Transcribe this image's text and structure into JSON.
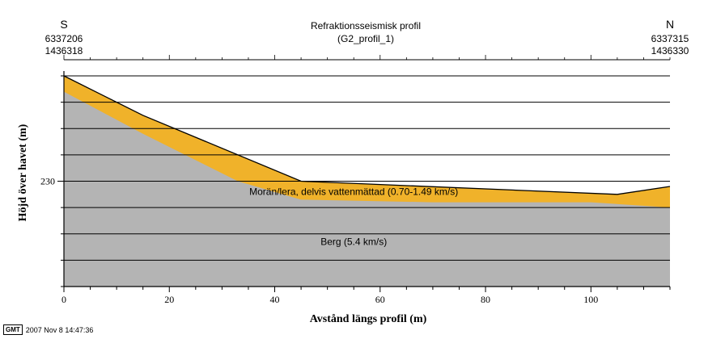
{
  "chart_data": {
    "type": "area",
    "title": "Refraktionsseismisk profil",
    "subtitle": "(G2_profil_1)",
    "xlabel": "Avstånd längs profil (m)",
    "ylabel": "Höjd över havet (m)",
    "xlim": [
      0,
      115
    ],
    "ylim": [
      226,
      234
    ],
    "x_ticks": [
      0,
      20,
      40,
      60,
      80,
      100
    ],
    "y_ticks": [
      230
    ],
    "grid": true,
    "left_end": {
      "label": "S",
      "northing": "6337206",
      "easting": "1436318"
    },
    "right_end": {
      "label": "N",
      "northing": "6337315",
      "easting": "1436330"
    },
    "colors": {
      "moran": "#f0b22a",
      "berg": "#b4b4b4",
      "surface": "#000000"
    },
    "series": [
      {
        "name": "Morän/lera, delvis vattenmättad (0.70-1.49 km/s)",
        "label_pos": [
          55,
          229.6
        ],
        "x": [
          0,
          15,
          45,
          105,
          115
        ],
        "y": [
          234.0,
          232.5,
          230.0,
          229.5,
          229.8
        ]
      },
      {
        "name": "Berg (5.4 km/s)",
        "label_pos": [
          55,
          227.7
        ],
        "x": [
          0,
          15,
          33,
          45,
          70,
          100,
          115
        ],
        "y": [
          233.4,
          231.8,
          230.0,
          229.3,
          229.2,
          229.2,
          229.0
        ]
      }
    ]
  },
  "footer": {
    "logo": "GMT",
    "timestamp": "2007 Nov  8 14:47:36"
  }
}
